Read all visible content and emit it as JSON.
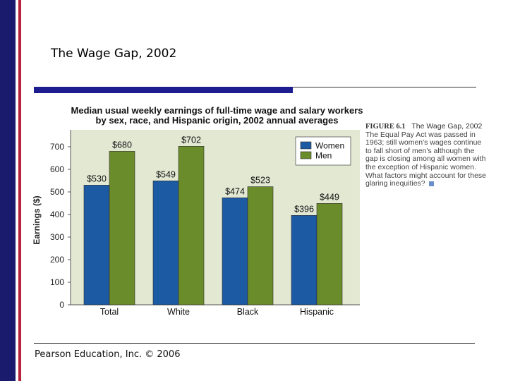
{
  "slide": {
    "title": "The Wage Gap, 2002",
    "footer": "Pearson Education, Inc. © 2006"
  },
  "caption": {
    "figure_label": "FIGURE 6.1",
    "title": "The Wage Gap, 2002",
    "text": "The Equal Pay Act was passed in 1963; still women's wages continue to fall short of men's although the gap is closing among all women with the exception of Hispanic women. What factors might account for these glaring inequities?"
  },
  "colors": {
    "women": "#1c5aa3",
    "men": "#6b8c2a",
    "plot_bg": "#e3e8d3",
    "left_stripes": [
      "#1b1b6e",
      "#ffffff",
      "#b3233a"
    ]
  },
  "chart_data": {
    "type": "bar",
    "title": "Median usual weekly earnings of full-time wage and salary workers by sex, race, and Hispanic origin, 2002 annual averages",
    "title_lines": [
      "Median usual weekly earnings of full-time wage and salary workers",
      "by sex, race, and Hispanic origin, 2002 annual averages"
    ],
    "categories": [
      "Total",
      "White",
      "Black",
      "Hispanic"
    ],
    "series": [
      {
        "name": "Women",
        "values": [
          530,
          549,
          474,
          396
        ],
        "labels": [
          "$530",
          "$549",
          "$474",
          "$396"
        ],
        "color": "#1c5aa3"
      },
      {
        "name": "Men",
        "values": [
          680,
          702,
          523,
          449
        ],
        "labels": [
          "$680",
          "$702",
          "$523",
          "$449"
        ],
        "color": "#6b8c2a"
      }
    ],
    "xlabel": "",
    "ylabel": "Earnings ($)",
    "ylim": [
      0,
      750
    ],
    "yticks": [
      0,
      100,
      200,
      300,
      400,
      500,
      600,
      700
    ],
    "grid": false,
    "legend": "top-right"
  }
}
